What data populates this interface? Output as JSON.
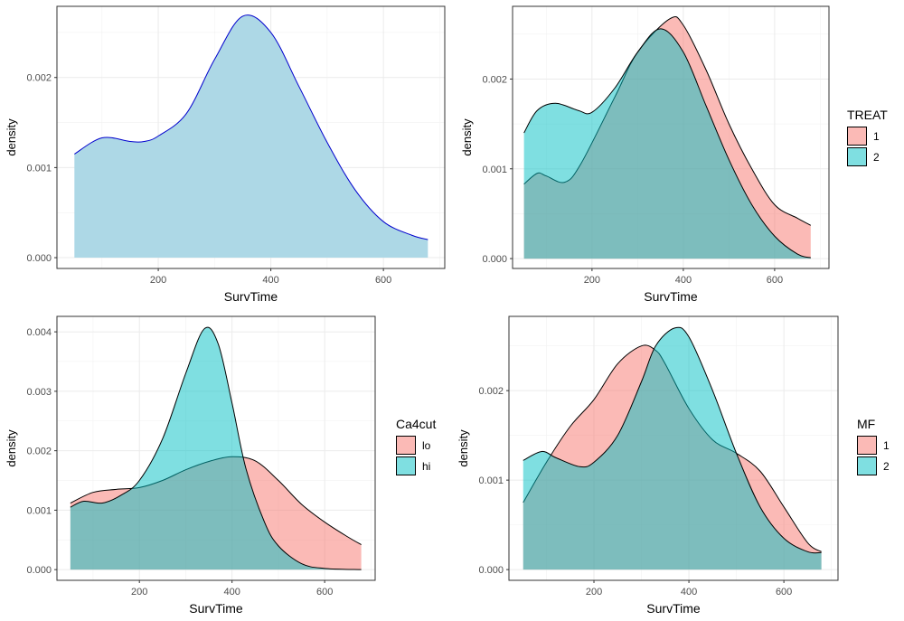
{
  "chart_data": [
    {
      "type": "area",
      "xlabel": "SurvTime",
      "ylabel": "density",
      "xlim": [
        20,
        709
      ],
      "ylim": [
        -0.00012,
        0.00279
      ],
      "xticks": [
        200,
        400,
        600
      ],
      "xtick_labels": [
        "200",
        "400",
        "600"
      ],
      "yticks": [
        0,
        0.001,
        0.002
      ],
      "ytick_labels": [
        "0.000",
        "0.001",
        "0.002"
      ],
      "grid": true,
      "legend": null,
      "series": [
        {
          "fill": "#ADD8E6",
          "line": "#0000CD",
          "alpha": 1,
          "x": [
            51,
            100,
            150,
            175,
            200,
            250,
            300,
            350,
            400,
            450,
            500,
            550,
            600,
            650,
            679
          ],
          "y": [
            0.00115,
            0.00133,
            0.00129,
            0.00129,
            0.00135,
            0.0016,
            0.0022,
            0.00268,
            0.0025,
            0.0019,
            0.00128,
            0.00075,
            0.0004,
            0.00025,
            0.0002
          ]
        }
      ]
    },
    {
      "type": "area",
      "xlabel": "SurvTime",
      "ylabel": "density",
      "xlim": [
        26,
        719
      ],
      "ylim": [
        -0.00011,
        0.00281
      ],
      "xticks": [
        200,
        400,
        600
      ],
      "xtick_labels": [
        "200",
        "400",
        "600"
      ],
      "yticks": [
        0,
        0.001,
        0.002
      ],
      "ytick_labels": [
        "0.000",
        "0.001",
        "0.002"
      ],
      "grid": true,
      "legend": "right",
      "legend_title": "TREAT",
      "series": [
        {
          "name": "1",
          "fill": "#F8766D",
          "line": "#000000",
          "alpha": 0.5,
          "x": [
            51,
            80,
            100,
            140,
            175,
            250,
            300,
            370,
            400,
            450,
            500,
            550,
            600,
            650,
            679
          ],
          "y": [
            0.00083,
            0.00095,
            0.00092,
            0.00085,
            0.00105,
            0.0018,
            0.0023,
            0.00267,
            0.0026,
            0.0021,
            0.0015,
            0.001,
            0.0006,
            0.00045,
            0.00037
          ]
        },
        {
          "name": "2",
          "fill": "#00BFC4",
          "line": "#000000",
          "alpha": 0.5,
          "x": [
            51,
            80,
            120,
            170,
            200,
            250,
            300,
            350,
            400,
            450,
            500,
            550,
            600,
            650,
            679
          ],
          "y": [
            0.0014,
            0.00165,
            0.00173,
            0.00165,
            0.00163,
            0.0019,
            0.0023,
            0.00256,
            0.0023,
            0.0017,
            0.0011,
            0.0006,
            0.00025,
            5e-05,
            1e-05
          ]
        }
      ]
    },
    {
      "type": "area",
      "xlabel": "SurvTime",
      "ylabel": "density",
      "xlim": [
        22,
        709
      ],
      "ylim": [
        -0.00018,
        0.00426
      ],
      "xticks": [
        200,
        400,
        600
      ],
      "xtick_labels": [
        "200",
        "400",
        "600"
      ],
      "yticks": [
        0,
        0.001,
        0.002,
        0.003,
        0.004
      ],
      "ytick_labels": [
        "0.000",
        "0.001",
        "0.002",
        "0.003",
        "0.004"
      ],
      "grid": true,
      "legend": "right",
      "legend_title": "Ca4cut",
      "series": [
        {
          "name": "lo",
          "fill": "#F8766D",
          "line": "#000000",
          "alpha": 0.5,
          "x": [
            51,
            100,
            150,
            200,
            250,
            300,
            350,
            400,
            450,
            500,
            550,
            600,
            650,
            679
          ],
          "y": [
            0.00112,
            0.0013,
            0.00135,
            0.00138,
            0.0015,
            0.00168,
            0.00182,
            0.0019,
            0.00183,
            0.0015,
            0.0011,
            0.0008,
            0.00055,
            0.00042
          ]
        },
        {
          "name": "hi",
          "fill": "#00BFC4",
          "line": "#000000",
          "alpha": 0.5,
          "x": [
            51,
            80,
            120,
            160,
            200,
            250,
            300,
            340,
            370,
            400,
            430,
            470,
            500,
            550,
            600,
            679
          ],
          "y": [
            0.00105,
            0.00115,
            0.00112,
            0.00125,
            0.0015,
            0.0022,
            0.0033,
            0.00405,
            0.0038,
            0.0028,
            0.0017,
            0.0008,
            0.0004,
            0.0001,
            2e-05,
            0
          ]
        }
      ]
    },
    {
      "type": "area",
      "xlabel": "SurvTime",
      "ylabel": "density",
      "xlim": [
        21,
        714
      ],
      "ylim": [
        -0.00012,
        0.00283
      ],
      "xticks": [
        200,
        400,
        600
      ],
      "xtick_labels": [
        "200",
        "400",
        "600"
      ],
      "yticks": [
        0,
        0.001,
        0.002
      ],
      "ytick_labels": [
        "0.000",
        "0.001",
        "0.002"
      ],
      "grid": true,
      "legend": "right",
      "legend_title": "MF",
      "series": [
        {
          "name": "1",
          "fill": "#F8766D",
          "line": "#000000",
          "alpha": 0.5,
          "x": [
            51,
            100,
            150,
            200,
            250,
            300,
            330,
            350,
            400,
            450,
            500,
            550,
            600,
            650,
            679
          ],
          "y": [
            0.00075,
            0.0012,
            0.0016,
            0.0019,
            0.0023,
            0.0025,
            0.00245,
            0.0023,
            0.0018,
            0.00145,
            0.0013,
            0.0011,
            0.0007,
            0.0003,
            0.0002
          ]
        },
        {
          "name": "2",
          "fill": "#00BFC4",
          "line": "#000000",
          "alpha": 0.5,
          "x": [
            51,
            90,
            120,
            170,
            200,
            250,
            300,
            330,
            370,
            400,
            450,
            500,
            550,
            600,
            650,
            679
          ],
          "y": [
            0.00122,
            0.00132,
            0.00125,
            0.00115,
            0.0012,
            0.0015,
            0.0021,
            0.0025,
            0.0027,
            0.0026,
            0.002,
            0.0013,
            0.0007,
            0.00035,
            0.0002,
            0.00019
          ]
        }
      ]
    }
  ]
}
